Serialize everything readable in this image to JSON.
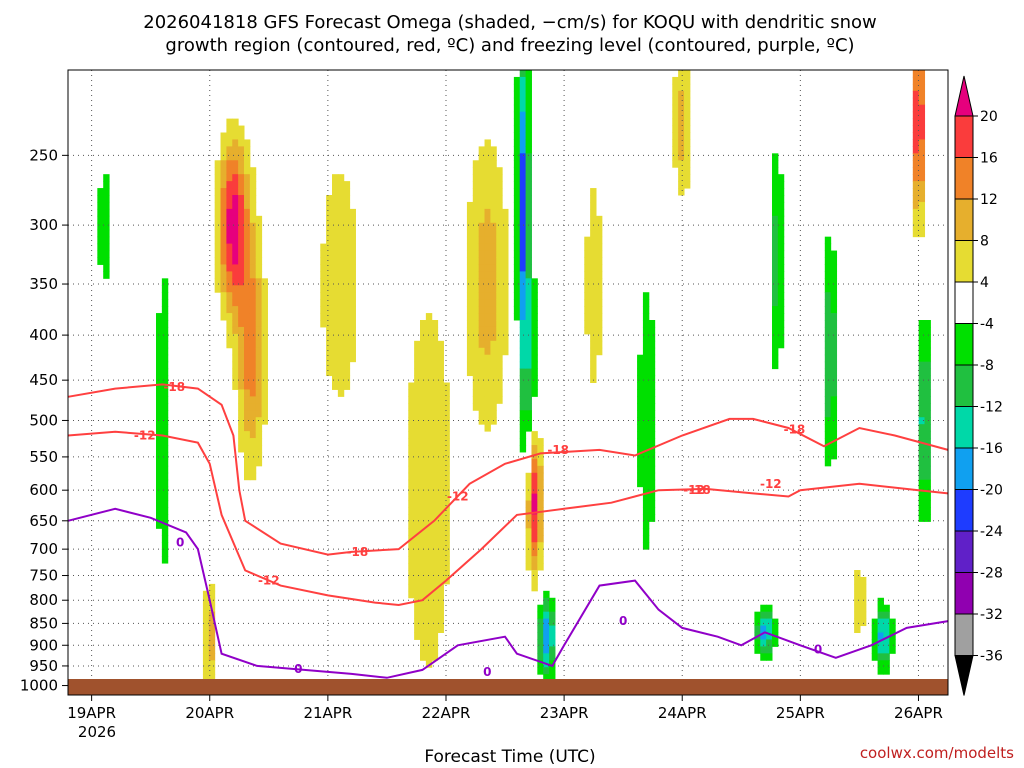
{
  "chart_data": {
    "type": "heatmap",
    "title_line1": "2026041818 GFS Forecast Omega (shaded, −cm/s) for KOQU with dendritic snow",
    "title_line2": "growth region (contoured, red, ºC) and freezing level (contoured, purple, ºC)",
    "xlabel": "Forecast Time (UTC)",
    "x_ticks": [
      "19APR",
      "20APR",
      "21APR",
      "22APR",
      "23APR",
      "24APR",
      "25APR",
      "26APR"
    ],
    "x_year": "2026",
    "y_ticks": [
      250,
      300,
      350,
      400,
      450,
      500,
      550,
      600,
      650,
      700,
      750,
      800,
      850,
      900,
      950,
      1000
    ],
    "y_range_hpa": [
      200,
      1025
    ],
    "x_range_days": [
      -0.2,
      7.25
    ],
    "colorbar": {
      "levels": [
        -36,
        -32,
        -28,
        -24,
        -20,
        -16,
        -12,
        -8,
        -4,
        4,
        8,
        12,
        16,
        20
      ],
      "colors": [
        "#000000",
        "#a0a0a0",
        "#9000b0",
        "#6020c8",
        "#1e3cff",
        "#10a0f0",
        "#00d8a8",
        "#20c040",
        "#00e000",
        "#ffffff",
        "#e6dc32",
        "#e6af2d",
        "#f08228",
        "#fa3c3c",
        "#e6007d"
      ]
    },
    "contours": {
      "red_labels": [
        "-18",
        "-12",
        "-18",
        "-12",
        "-18",
        "-12",
        "-18",
        "-12",
        "-18",
        "-12"
      ],
      "purple_labels": [
        "0",
        "0",
        "0",
        "0",
        "0"
      ],
      "red_color": "#ff4040",
      "purple_color": "#9000c8",
      "ground_color": "#a0522d"
    },
    "credit": "coolwx.com/modelts"
  }
}
